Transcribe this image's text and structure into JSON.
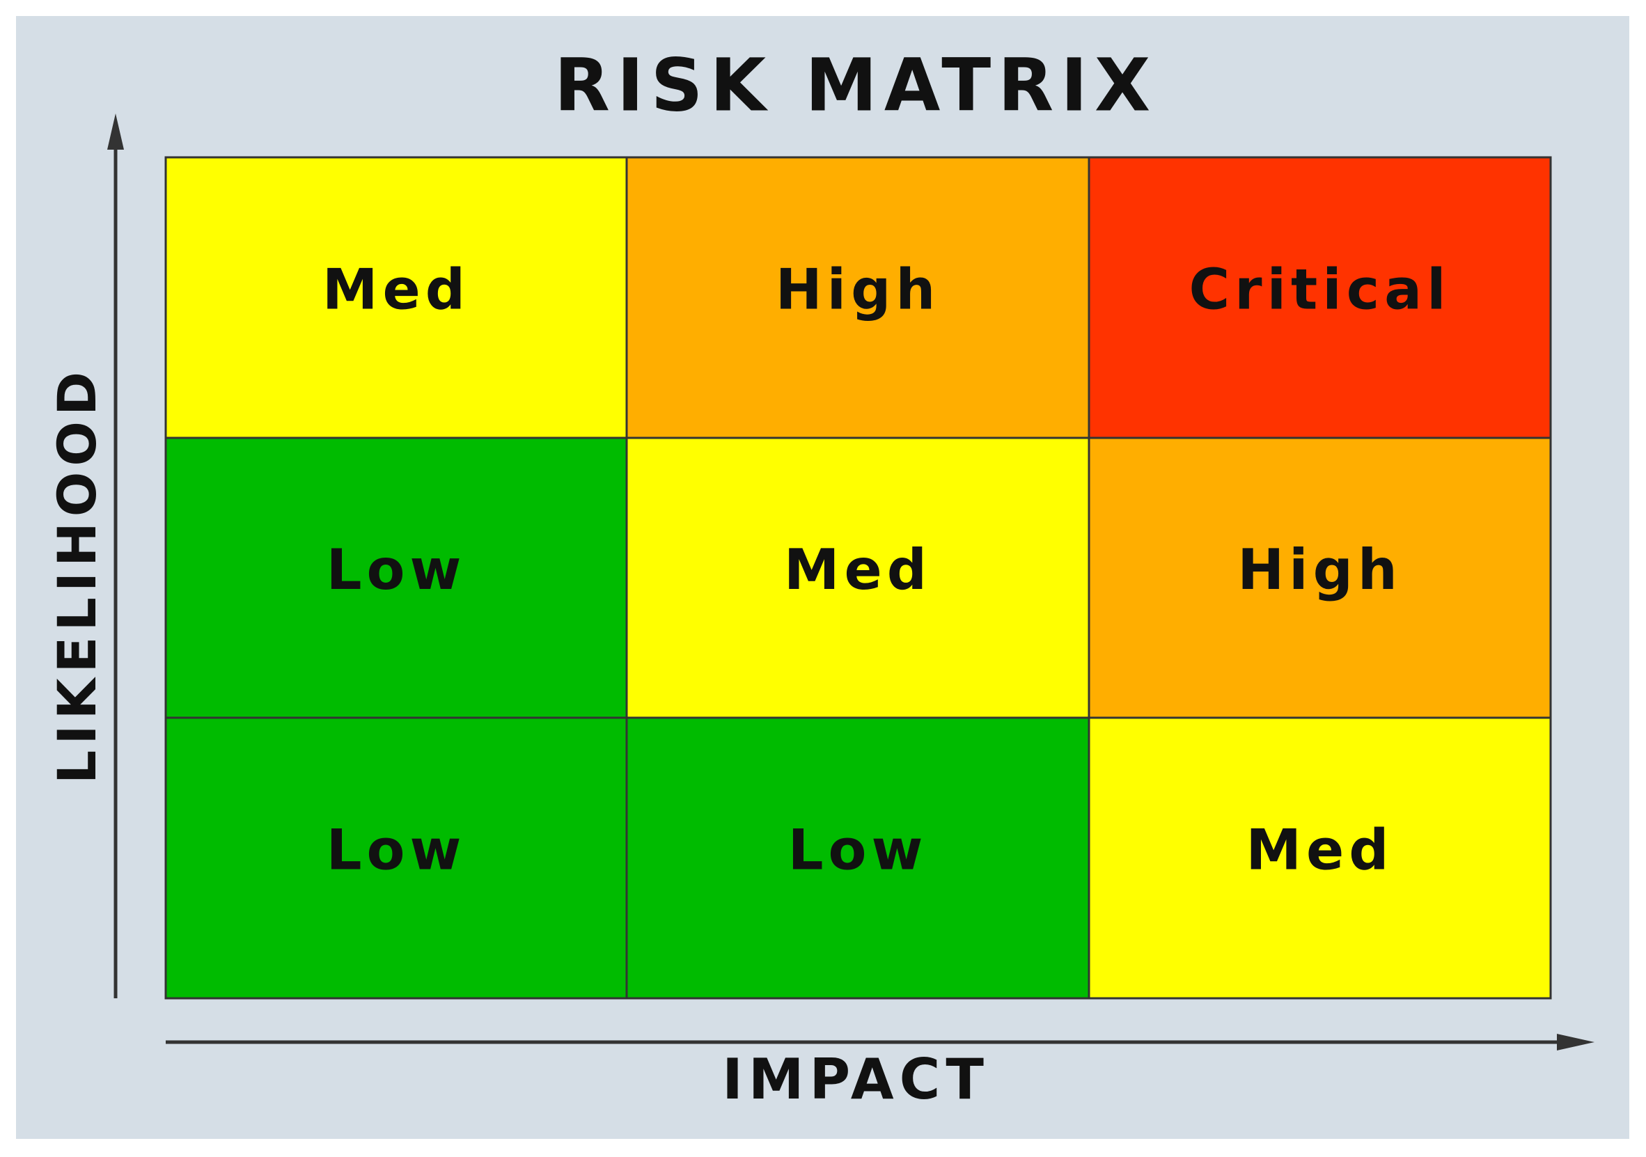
{
  "title": "RISK MATRIX",
  "y_axis_label": "LIKELIHOOD",
  "x_axis_label": "IMPACT",
  "grid": {
    "rows": [
      [
        {
          "label": "Med",
          "color": "#ffff00"
        },
        {
          "label": "High",
          "color": "#ffae00"
        },
        {
          "label": "Critical",
          "color": "#ff3300"
        }
      ],
      [
        {
          "label": "Low",
          "color": "#00bb00"
        },
        {
          "label": "Med",
          "color": "#ffff00"
        },
        {
          "label": "High",
          "color": "#ffae00"
        }
      ],
      [
        {
          "label": "Low",
          "color": "#00bb00"
        },
        {
          "label": "Low",
          "color": "#00bb00"
        },
        {
          "label": "Med",
          "color": "#ffff00"
        }
      ]
    ]
  }
}
